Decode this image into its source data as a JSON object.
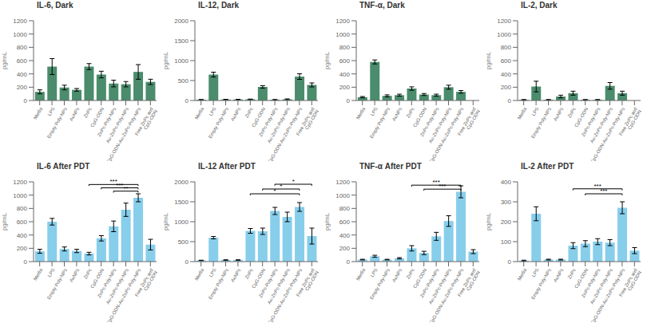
{
  "chart_data": [
    {
      "type": "bar",
      "title": "IL-6, Dark",
      "ylabel": "pg/mL",
      "categories": [
        "Media",
        "LPS",
        "Empty Poly-NPs",
        "AuNPs",
        "ZnPc",
        "CpG-ODN",
        "ZnPc-Poly-NPs",
        "Au-ZnPc-Poly-NPs",
        "CpG-ODN-Au-ZnPc-Poly-NPs",
        "Free ZnPc and CpG-ODN"
      ],
      "values": [
        130,
        510,
        195,
        160,
        510,
        390,
        255,
        245,
        430,
        280
      ],
      "errors": [
        30,
        120,
        35,
        20,
        45,
        50,
        50,
        40,
        110,
        40
      ],
      "color": "#4a8c6c",
      "ylim": [
        0,
        1200
      ],
      "yticks": [
        0,
        200,
        400,
        600,
        800,
        1000,
        1200
      ],
      "grid": false
    },
    {
      "type": "bar",
      "title": "IL-12, Dark",
      "ylabel": "pg/mL",
      "categories": [
        "Media",
        "LPS",
        "Empty Poly-NPs",
        "AuNPs",
        "ZnPc",
        "CpG-ODN",
        "ZnPc-Poly-NPs",
        "Au-ZnPc-Poly-NPs",
        "CpG-ODN-Au-ZnPc-Poly-NPs",
        "Free ZnPc and CpG-ODN"
      ],
      "values": [
        20,
        650,
        25,
        25,
        30,
        340,
        20,
        30,
        600,
        390
      ],
      "errors": [
        5,
        60,
        5,
        5,
        5,
        30,
        5,
        10,
        70,
        50
      ],
      "color": "#4a8c6c",
      "ylim": [
        0,
        2000
      ],
      "yticks": [
        0,
        500,
        1000,
        1500,
        2000
      ],
      "grid": false
    },
    {
      "type": "bar",
      "title": "TNF-α, Dark",
      "ylabel": "pg/mL",
      "categories": [
        "Media",
        "LPS",
        "Empty Poly-NPs",
        "AuNPs",
        "ZnPc",
        "CpG-ODN",
        "ZnPc-Poly-NPs",
        "Au-ZnPc-Poly-NPs",
        "CpG-ODN-Au-ZnPc-Poly-NPs",
        "Free ZnPc and CpG-ODN"
      ],
      "values": [
        50,
        580,
        70,
        80,
        180,
        90,
        80,
        200,
        130,
        0
      ],
      "errors": [
        10,
        30,
        15,
        15,
        25,
        15,
        15,
        30,
        20,
        0
      ],
      "color": "#4a8c6c",
      "ylim": [
        0,
        1200
      ],
      "yticks": [
        0,
        200,
        400,
        600,
        800,
        1000,
        1200
      ],
      "grid": false
    },
    {
      "type": "bar",
      "title": "IL-2, Dark",
      "ylabel": "pg/mL",
      "categories": [
        "Media",
        "LPS",
        "Empty Poly-NPs",
        "AuNPs",
        "ZnPc",
        "CpG-ODN",
        "ZnPc-Poly-NPs",
        "Au-ZnPc-Poly-NPs",
        "CpG-ODN-Au-ZnPc-Poly-NPs",
        "Free ZnPc and CpG-ODN"
      ],
      "values": [
        10,
        210,
        10,
        60,
        110,
        10,
        10,
        220,
        110,
        0
      ],
      "errors": [
        5,
        80,
        5,
        20,
        30,
        5,
        5,
        50,
        30,
        0
      ],
      "color": "#4a8c6c",
      "ylim": [
        0,
        1200
      ],
      "yticks": [
        0,
        200,
        400,
        600,
        800,
        1000,
        1200
      ],
      "grid": false
    },
    {
      "type": "bar",
      "title": "IL-6 After PDT",
      "ylabel": "pg/mL",
      "categories": [
        "Media",
        "LPS",
        "Empty Poly-NPs",
        "AuNPs",
        "ZnPc",
        "CpG-ODN",
        "ZnPc-Poly-NPs",
        "Au-ZnPc-Poly-NPs",
        "CpG-ODN-Au-ZnPc-Poly-NPs",
        "Free ZnPc and CpG-ODN"
      ],
      "values": [
        155,
        600,
        190,
        160,
        120,
        350,
        530,
        780,
        960,
        255
      ],
      "errors": [
        30,
        50,
        30,
        25,
        20,
        40,
        80,
        100,
        60,
        80
      ],
      "color": "#87ceeb",
      "ylim": [
        0,
        1200
      ],
      "yticks": [
        0,
        200,
        400,
        600,
        800,
        1000,
        1200
      ],
      "grid": false,
      "annotations": [
        {
          "from": "ZnPc-Poly-NPs",
          "to": "CpG-ODN-Au-ZnPc-Poly-NPs",
          "y": 1060,
          "label": "**"
        },
        {
          "from": "CpG-ODN",
          "to": "CpG-ODN-Au-ZnPc-Poly-NPs",
          "y": 1110,
          "label": "***"
        },
        {
          "from": "ZnPc",
          "to": "CpG-ODN-Au-ZnPc-Poly-NPs",
          "y": 1160,
          "label": "***"
        }
      ]
    },
    {
      "type": "bar",
      "title": "IL-12 After PDT",
      "ylabel": "pg/mL",
      "categories": [
        "Media",
        "LPS",
        "Empty Poly-NPs",
        "AuNPs",
        "ZnPc",
        "CpG-ODN",
        "ZnPc-Poly-NPs",
        "Au-ZnPc-Poly-NPs",
        "CpG-ODN-Au-ZnPc-Poly-NPs",
        "Free ZnPc and CpG-ODN"
      ],
      "values": [
        30,
        600,
        40,
        40,
        770,
        760,
        1270,
        1120,
        1370,
        640
      ],
      "errors": [
        5,
        30,
        5,
        5,
        60,
        80,
        90,
        120,
        110,
        200
      ],
      "color": "#87ceeb",
      "ylim": [
        0,
        2000
      ],
      "yticks": [
        0,
        500,
        1000,
        1500,
        2000
      ],
      "grid": false,
      "annotations": [
        {
          "from": "ZnPc",
          "to": "CpG-ODN-Au-ZnPc-Poly-NPs",
          "y": 1700,
          "label": "*"
        },
        {
          "from": "CpG-ODN",
          "to": "CpG-ODN-Au-ZnPc-Poly-NPs",
          "y": 1820,
          "label": "*"
        },
        {
          "from": "ZnPc-Poly-NPs",
          "to": "Free ZnPc and CpG-ODN",
          "y": 1940,
          "label": "*"
        }
      ]
    },
    {
      "type": "bar",
      "title": "TNF-α After PDT",
      "ylabel": "pg/mL",
      "categories": [
        "Media",
        "LPS",
        "Empty Poly-NPs",
        "AuNPs",
        "ZnPc",
        "CpG-ODN",
        "ZnPc-Poly-NPs",
        "Au-ZnPc-Poly-NPs",
        "CpG-ODN-Au-ZnPc-Poly-NPs",
        "Free ZnPc and CpG-ODN"
      ],
      "values": [
        30,
        80,
        30,
        50,
        200,
        130,
        380,
        610,
        1050,
        150
      ],
      "errors": [
        5,
        15,
        5,
        10,
        40,
        25,
        60,
        80,
        90,
        30
      ],
      "color": "#87ceeb",
      "ylim": [
        0,
        1200
      ],
      "yticks": [
        0,
        200,
        400,
        600,
        800,
        1000,
        1200
      ],
      "grid": false,
      "annotations": [
        {
          "from": "CpG-ODN",
          "to": "CpG-ODN-Au-ZnPc-Poly-NPs",
          "y": 1090,
          "label": "***"
        },
        {
          "from": "ZnPc",
          "to": "CpG-ODN-Au-ZnPc-Poly-NPs",
          "y": 1150,
          "label": "***"
        }
      ]
    },
    {
      "type": "bar",
      "title": "IL-2 After PDT",
      "ylabel": "pg/mL",
      "categories": [
        "Media",
        "LPS",
        "Empty Poly-NPs",
        "AuNPs",
        "ZnPc",
        "CpG-ODN",
        "ZnPc-Poly-NPs",
        "Au-ZnPc-Poly-NPs",
        "CpG-ODN-Au-ZnPc-Poly-NPs",
        "Free ZnPc and CpG-ODN"
      ],
      "values": [
        5,
        240,
        10,
        10,
        80,
        90,
        100,
        95,
        270,
        55
      ],
      "errors": [
        2,
        35,
        2,
        2,
        15,
        15,
        15,
        15,
        30,
        15
      ],
      "color": "#87ceeb",
      "ylim": [
        0,
        400
      ],
      "yticks": [
        0,
        100,
        200,
        300,
        400
      ],
      "grid": false,
      "annotations": [
        {
          "from": "CpG-ODN",
          "to": "CpG-ODN-Au-ZnPc-Poly-NPs",
          "y": 340,
          "label": "***"
        },
        {
          "from": "ZnPc",
          "to": "CpG-ODN-Au-ZnPc-Poly-NPs",
          "y": 365,
          "label": "***"
        }
      ]
    }
  ]
}
